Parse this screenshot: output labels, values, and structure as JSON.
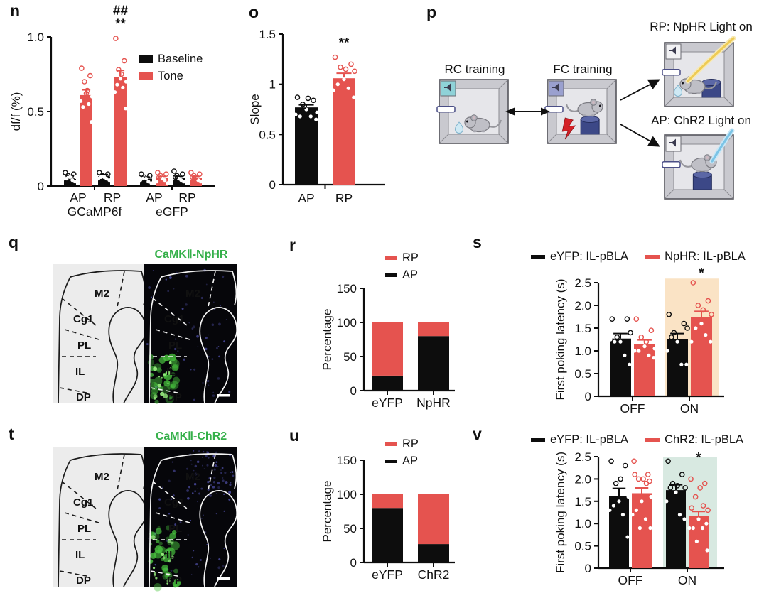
{
  "colors": {
    "red": "#e5534f",
    "black": "#0d0d0d",
    "peach": "#fae3c5",
    "teal": "#d8e9e1",
    "green": "#35b04a"
  },
  "panel_p": {
    "label": "p",
    "rc_label": "RC training",
    "fc_label": "FC training",
    "branch_top": "RP: NpHR Light on",
    "branch_bottom": "AP: ChR2 Light on"
  },
  "panel_q": {
    "label": "q",
    "title": "CaMKⅡ-NpHR",
    "regions": [
      "M2",
      "Cg1",
      "PL",
      "IL",
      "DP"
    ]
  },
  "panel_t": {
    "label": "t",
    "title": "CaMKⅡ-ChR2",
    "regions": [
      "M2",
      "Cg1",
      "PL",
      "IL",
      "DP"
    ]
  },
  "chart_data": [
    {
      "id": "n",
      "type": "bar",
      "panel_label": "n",
      "ylabel": "df/f (%)",
      "ylim": [
        0,
        1.0
      ],
      "yticks": [
        "0",
        "0.5",
        "1.0"
      ],
      "ytick_values": [
        0,
        0.5,
        1.0
      ],
      "legend": [
        {
          "label": "Baseline",
          "color": "black"
        },
        {
          "label": "Tone",
          "color": "red"
        }
      ],
      "group_headers": [
        "GCaMP6f",
        "eGFP"
      ],
      "groups": [
        {
          "label": "AP",
          "bars": [
            {
              "series": "Baseline",
              "color": "black",
              "value": 0.06,
              "err": 0.012,
              "points": [
                0.09,
                0.04,
                0.07,
                0.03,
                0.06,
                0.05,
                0.08,
                0.05,
                0.06
              ]
            },
            {
              "series": "Tone",
              "color": "red",
              "value": 0.61,
              "err": 0.035,
              "points": [
                0.79,
                0.55,
                0.7,
                0.43,
                0.62,
                0.57,
                0.74,
                0.53,
                0.6,
                0.64
              ]
            }
          ]
        },
        {
          "label": "RP",
          "bars": [
            {
              "series": "Baseline",
              "color": "black",
              "value": 0.065,
              "err": 0.012,
              "points": [
                0.09,
                0.05,
                0.07,
                0.04,
                0.06,
                0.05,
                0.08,
                0.06
              ]
            },
            {
              "series": "Tone",
              "color": "red",
              "value": 0.73,
              "err": 0.045,
              "sig": [
                "**",
                "##"
              ],
              "points": [
                0.99,
                0.66,
                0.78,
                0.52,
                0.72,
                0.63,
                0.84,
                0.68,
                0.7,
                0.75
              ]
            }
          ]
        },
        {
          "label": "AP",
          "bars": [
            {
              "series": "Baseline",
              "color": "black",
              "value": 0.05,
              "err": 0.01,
              "points": [
                0.08,
                0.03,
                0.06,
                0.02,
                0.05,
                0.04,
                0.07,
                0.05
              ]
            },
            {
              "series": "Tone",
              "color": "red",
              "value": 0.055,
              "err": 0.01,
              "points": [
                0.09,
                0.04,
                0.07,
                0.02,
                0.05,
                0.03,
                0.08,
                0.06
              ]
            }
          ]
        },
        {
          "label": "RP",
          "bars": [
            {
              "series": "Baseline",
              "color": "black",
              "value": 0.055,
              "err": 0.01,
              "points": [
                0.1,
                0.04,
                0.07,
                0.03,
                0.05,
                0.05,
                0.08,
                0.06
              ]
            },
            {
              "series": "Tone",
              "color": "red",
              "value": 0.055,
              "err": 0.01,
              "points": [
                0.09,
                0.04,
                0.07,
                0.03,
                0.06,
                0.05,
                0.08,
                0.06
              ]
            }
          ]
        }
      ]
    },
    {
      "id": "o",
      "type": "bar",
      "panel_label": "o",
      "ylabel": "Slope",
      "ylim": [
        0,
        1.5
      ],
      "yticks": [
        "0",
        "0.5",
        "1",
        "1.5"
      ],
      "ytick_values": [
        0,
        0.5,
        1,
        1.5
      ],
      "groups": [
        {
          "label": "AP",
          "bars": [
            {
              "series": "AP",
              "color": "black",
              "value": 0.77,
              "err": 0.025,
              "points": [
                0.87,
                0.68,
                0.8,
                0.65,
                0.75,
                0.7,
                0.84,
                0.68,
                0.72,
                0.86,
                0.78
              ]
            }
          ]
        },
        {
          "label": "RP",
          "bars": [
            {
              "series": "RP",
              "color": "red",
              "value": 1.06,
              "err": 0.05,
              "sig": [
                "**"
              ],
              "points": [
                1.27,
                0.96,
                1.17,
                0.87,
                1.05,
                0.94,
                1.2,
                1.0,
                1.13,
                1.15
              ]
            }
          ]
        }
      ]
    },
    {
      "id": "r",
      "type": "stacked_bar",
      "panel_label": "r",
      "ylabel": "Percentage",
      "ylim": [
        0,
        150
      ],
      "yticks": [
        "0",
        "50",
        "100",
        "150"
      ],
      "ytick_values": [
        0,
        50,
        100,
        150
      ],
      "legend": [
        {
          "label": "RP",
          "color": "red"
        },
        {
          "label": "AP",
          "color": "black"
        }
      ],
      "categories": [
        "eYFP",
        "NpHR"
      ],
      "series": [
        {
          "name": "AP",
          "color": "black",
          "values": [
            22,
            80
          ]
        },
        {
          "name": "RP",
          "color": "red",
          "values": [
            78,
            20
          ]
        }
      ]
    },
    {
      "id": "s",
      "type": "bar",
      "panel_label": "s",
      "ylabel": "First poking latency (s)",
      "ylim": [
        0,
        2.5
      ],
      "yticks": [
        "0",
        "0.5",
        "1.0",
        "1.5",
        "2.0",
        "2.5"
      ],
      "ytick_values": [
        0,
        0.5,
        1.0,
        1.5,
        2.0,
        2.5
      ],
      "legend": [
        {
          "label": "eYFP: IL-pBLA",
          "color": "black"
        },
        {
          "label": "NpHR: IL-pBLA",
          "color": "red"
        }
      ],
      "highlight": {
        "group": 1,
        "color": "peach"
      },
      "groups": [
        {
          "label": "OFF",
          "bars": [
            {
              "series": "eYFP",
              "color": "black",
              "value": 1.27,
              "err": 0.11,
              "points": [
                1.7,
                0.9,
                1.3,
                0.7,
                1.2,
                1.25,
                1.7,
                1.2,
                1.4
              ]
            },
            {
              "series": "NpHR",
              "color": "red",
              "value": 1.15,
              "err": 0.09,
              "points": [
                1.7,
                0.9,
                1.3,
                0.85,
                1.1,
                1.0,
                1.45,
                1.0,
                1.05,
                1.2
              ]
            }
          ]
        },
        {
          "label": "ON",
          "bars": [
            {
              "series": "eYFP",
              "color": "black",
              "value": 1.25,
              "err": 0.13,
              "points": [
                1.8,
                0.7,
                1.4,
                0.7,
                1.2,
                1.0,
                1.6,
                1.3,
                1.5
              ]
            },
            {
              "series": "NpHR",
              "color": "red",
              "value": 1.75,
              "err": 0.12,
              "sig": [
                "*"
              ],
              "sig_y": 2.62,
              "points": [
                2.5,
                1.35,
                2.0,
                1.2,
                1.6,
                1.2,
                2.1,
                1.5,
                1.8,
                1.9
              ]
            }
          ]
        }
      ]
    },
    {
      "id": "u",
      "type": "stacked_bar",
      "panel_label": "u",
      "ylabel": "Percentage",
      "ylim": [
        0,
        150
      ],
      "yticks": [
        "0",
        "50",
        "100",
        "150"
      ],
      "ytick_values": [
        0,
        50,
        100,
        150
      ],
      "legend": [
        {
          "label": "RP",
          "color": "red"
        },
        {
          "label": "AP",
          "color": "black"
        }
      ],
      "categories": [
        "eYFP",
        "ChR2"
      ],
      "series": [
        {
          "name": "AP",
          "color": "black",
          "values": [
            80,
            27
          ]
        },
        {
          "name": "RP",
          "color": "red",
          "values": [
            20,
            73
          ]
        }
      ]
    },
    {
      "id": "v",
      "type": "bar",
      "panel_label": "v",
      "ylabel": "First poking latency (s)",
      "ylim": [
        0,
        2.5
      ],
      "yticks": [
        "0",
        "0.5",
        "1.0",
        "1.5",
        "2.0",
        "2.5"
      ],
      "ytick_values": [
        0,
        0.5,
        1.0,
        1.5,
        2.0,
        2.5
      ],
      "legend": [
        {
          "label": "eYFP: IL-pBLA",
          "color": "black"
        },
        {
          "label": "ChR2: IL-pBLA",
          "color": "red"
        }
      ],
      "highlight": {
        "group": 1,
        "color": "teal"
      },
      "groups": [
        {
          "label": "OFF",
          "bars": [
            {
              "series": "eYFP",
              "color": "black",
              "value": 1.62,
              "err": 0.17,
              "points": [
                2.4,
                1.2,
                1.9,
                0.7,
                1.5,
                1.3,
                2.3,
                1.4,
                1.6,
                2.0
              ]
            },
            {
              "series": "ChR2",
              "color": "red",
              "value": 1.68,
              "err": 0.12,
              "points": [
                2.4,
                1.1,
                2.0,
                0.9,
                1.5,
                1.2,
                2.1,
                1.3,
                1.6,
                2.0,
                0.9,
                1.9,
                2.1,
                1.95
              ]
            }
          ]
        },
        {
          "label": "ON",
          "bars": [
            {
              "series": "eYFP",
              "color": "black",
              "value": 1.75,
              "err": 0.12,
              "points": [
                2.4,
                1.2,
                1.9,
                1.1,
                1.7,
                1.5,
                2.1,
                1.8,
                1.8,
                1.85
              ]
            },
            {
              "series": "ChR2",
              "color": "red",
              "value": 1.17,
              "err": 0.1,
              "sig": [
                "*"
              ],
              "sig_y": 2.38,
              "points": [
                2.0,
                0.9,
                1.6,
                0.4,
                1.1,
                0.9,
                1.9,
                0.9,
                1.3,
                1.8,
                0.6,
                1.4,
                1.35,
                1.0
              ]
            }
          ]
        }
      ]
    }
  ]
}
